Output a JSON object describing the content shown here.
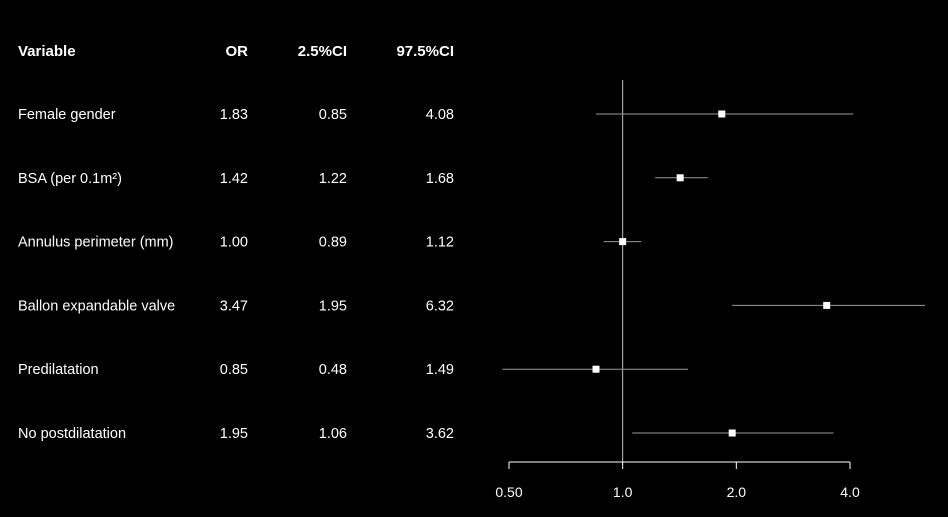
{
  "chart_data": {
    "type": "forest",
    "columns": [
      "Variable",
      "OR",
      "2.5%CI",
      "97.5%CI"
    ],
    "rows": [
      {
        "variable": "Female gender",
        "or": "1.83",
        "ci_low": "0.85",
        "ci_high": "4.08"
      },
      {
        "variable": "BSA (per 0.1m²)",
        "or": "1.42",
        "ci_low": "1.22",
        "ci_high": "1.68"
      },
      {
        "variable": "Annulus perimeter (mm)",
        "or": "1.00",
        "ci_low": "0.89",
        "ci_high": "1.12"
      },
      {
        "variable": "Ballon expandable valve",
        "or": "3.47",
        "ci_low": "1.95",
        "ci_high": "6.32"
      },
      {
        "variable": "Predilatation",
        "or": "0.85",
        "ci_low": "0.48",
        "ci_high": "1.49"
      },
      {
        "variable": "No postdilatation",
        "or": "1.95",
        "ci_low": "1.06",
        "ci_high": "3.62"
      }
    ],
    "x_axis": {
      "scale": "log",
      "ticks": [
        0.5,
        1.0,
        2.0,
        4.0
      ],
      "tick_labels": [
        "0.50",
        "1.0",
        "2.0",
        "4.0"
      ],
      "reference_line": 1.0
    },
    "colors": {
      "background": "#000000",
      "text": "#ffffff",
      "ci_line": "#9a9a9a",
      "reference_line": "#bdbdbd",
      "marker": "#ffffff"
    }
  }
}
